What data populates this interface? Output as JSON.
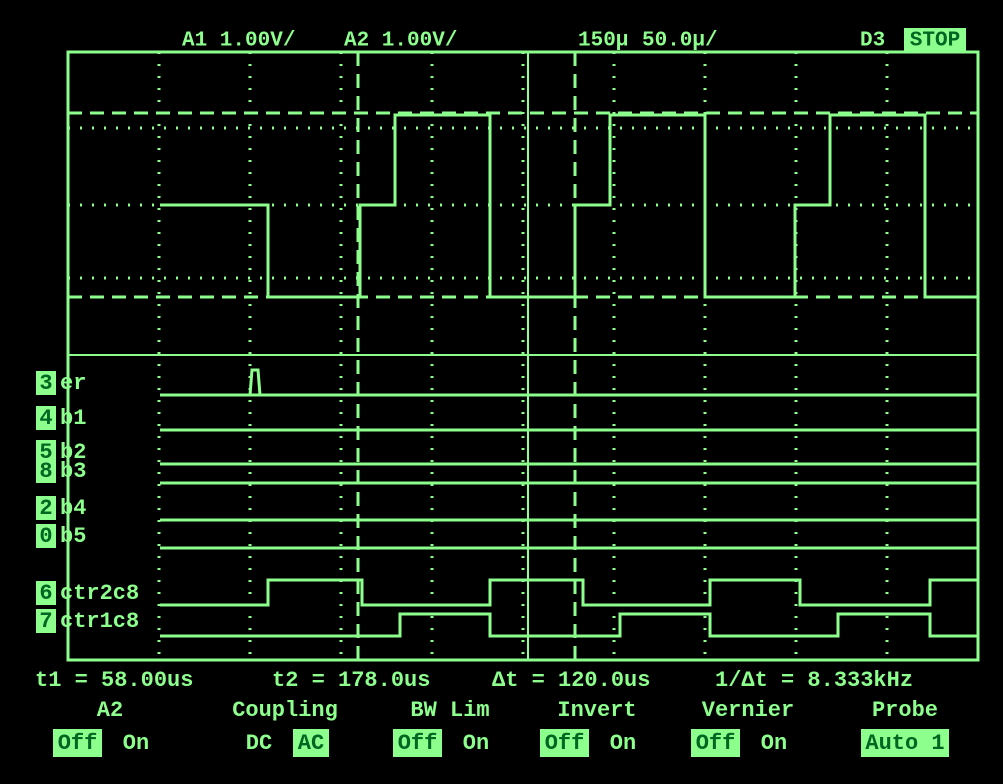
{
  "header": {
    "ch1": "A1 1.00V/",
    "ch2": "A2 1.00V/",
    "delay": "150μ",
    "timebase": "50.0μ/",
    "trigger": "D3",
    "status": "STOP"
  },
  "channels": [
    {
      "number": "3",
      "name": "er"
    },
    {
      "number": "4",
      "name": "b1"
    },
    {
      "number": "5",
      "name": "b2"
    },
    {
      "number": "8",
      "name": "b3"
    },
    {
      "number": "2",
      "name": "b4"
    },
    {
      "number": "0",
      "name": "b5"
    },
    {
      "number": "6",
      "name": "ctr2c8"
    },
    {
      "number": "7",
      "name": "ctr1c8"
    }
  ],
  "measurements": [
    "t1 = 58.00us",
    "t2 = 178.0us",
    "Δt = 120.0us",
    "1/Δt = 8.333kHz"
  ],
  "softkeys": [
    {
      "title": "A2",
      "options": [
        "Off",
        "On"
      ]
    },
    {
      "title": "Coupling",
      "options": [
        "DC",
        "AC"
      ]
    },
    {
      "title": "BW Lim",
      "options": [
        "Off",
        "On"
      ]
    },
    {
      "title": "Invert",
      "options": [
        "Off",
        "On"
      ]
    },
    {
      "title": "Vernier",
      "options": [
        "Off",
        "On"
      ]
    },
    {
      "title": "Probe",
      "options": [
        "Auto 1"
      ]
    }
  ]
}
